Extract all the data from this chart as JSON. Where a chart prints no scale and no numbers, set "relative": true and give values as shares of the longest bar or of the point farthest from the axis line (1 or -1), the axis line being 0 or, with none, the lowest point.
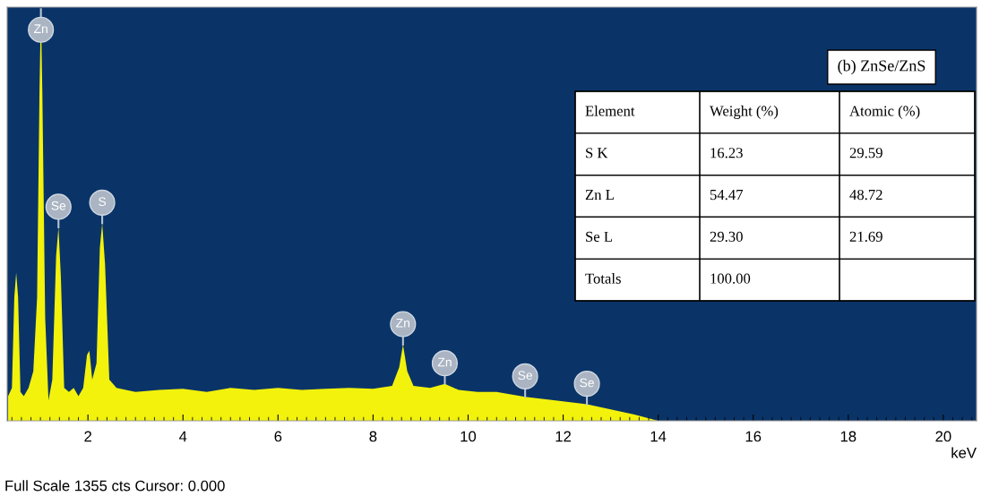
{
  "chart_data": {
    "type": "area",
    "relative": true,
    "xlabel": "keV",
    "xlim": [
      0.3,
      20.7
    ],
    "xticks": [
      2,
      4,
      6,
      8,
      10,
      12,
      14,
      16,
      18,
      20
    ],
    "x": [
      0.32,
      0.4,
      0.45,
      0.49,
      0.53,
      0.58,
      0.65,
      0.75,
      0.85,
      0.93,
      0.98,
      1.01,
      1.04,
      1.1,
      1.17,
      1.25,
      1.33,
      1.38,
      1.43,
      1.5,
      1.6,
      1.7,
      1.8,
      1.9,
      1.98,
      2.03,
      2.09,
      2.18,
      2.25,
      2.3,
      2.36,
      2.45,
      2.6,
      3.0,
      3.5,
      4.0,
      4.5,
      5.0,
      5.5,
      6.0,
      6.5,
      7.0,
      7.5,
      8.0,
      8.4,
      8.55,
      8.63,
      8.72,
      8.85,
      9.2,
      9.51,
      9.8,
      10.2,
      10.6,
      11.2,
      11.8,
      12.5,
      13.0,
      13.5,
      14.0,
      20.7
    ],
    "series": [
      {
        "color": "#f2f20c",
        "values": [
          0.06,
          0.08,
          0.3,
          0.36,
          0.3,
          0.07,
          0.06,
          0.08,
          0.12,
          0.3,
          0.8,
          1.0,
          0.8,
          0.25,
          0.05,
          0.1,
          0.4,
          0.47,
          0.35,
          0.08,
          0.07,
          0.08,
          0.06,
          0.08,
          0.16,
          0.17,
          0.1,
          0.14,
          0.42,
          0.48,
          0.38,
          0.1,
          0.08,
          0.07,
          0.075,
          0.078,
          0.07,
          0.08,
          0.075,
          0.08,
          0.075,
          0.078,
          0.08,
          0.078,
          0.085,
          0.13,
          0.185,
          0.12,
          0.085,
          0.08,
          0.09,
          0.075,
          0.07,
          0.07,
          0.058,
          0.05,
          0.04,
          0.028,
          0.015,
          0.0,
          0.0
        ]
      }
    ],
    "grid": false,
    "legend": false,
    "tick_labels": "x",
    "annotations": [
      {
        "text": "Zn",
        "x": 1.01,
        "y": 1.0
      },
      {
        "text": "Se",
        "x": 1.38,
        "y": 0.47
      },
      {
        "text": "S",
        "x": 2.3,
        "y": 0.48
      },
      {
        "text": "Zn",
        "x": 8.63,
        "y": 0.185
      },
      {
        "text": "Zn",
        "x": 9.51,
        "y": 0.09
      },
      {
        "text": "Se",
        "x": 11.2,
        "y": 0.058
      },
      {
        "text": "Se",
        "x": 12.5,
        "y": 0.04
      },
      "(b) ZnSe/ZnS",
      "Element",
      "Weight (%)",
      "Atomic (%)",
      "S K",
      "16.23",
      "29.59",
      "Zn L",
      "54.47",
      "48.72",
      "Se L",
      "29.30",
      "21.69",
      "Totals",
      "100.00",
      "Full Scale 1355 cts Cursor: 0.000"
    ]
  }
}
